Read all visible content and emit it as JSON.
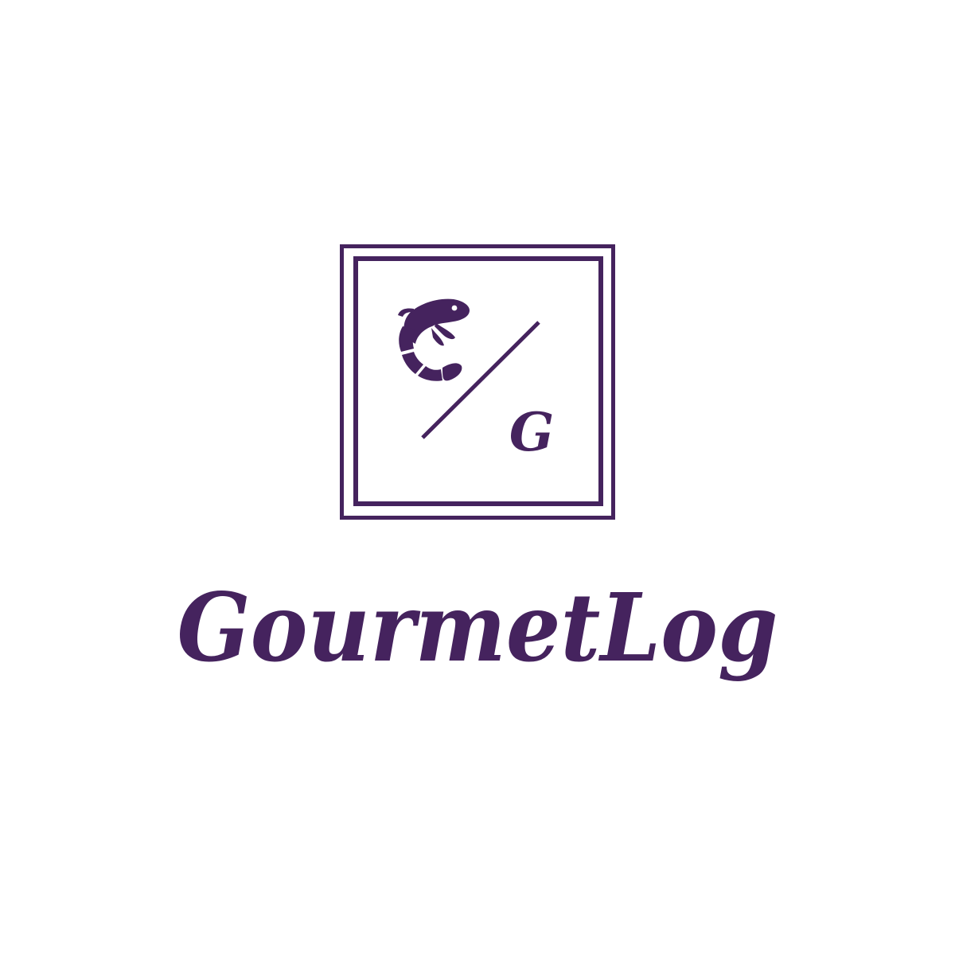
{
  "brand": {
    "name": "GourmetLog",
    "monogram": "G",
    "mascot": "shrimp-icon",
    "colors": {
      "primary": "#45235E",
      "background": "#FFFFFF"
    }
  }
}
